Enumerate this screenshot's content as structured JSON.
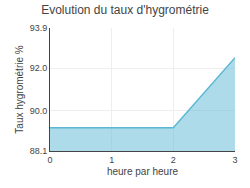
{
  "chart_data": {
    "type": "area",
    "title": "Evolution du taux d'hygrométrie",
    "xlabel": "heure par heure",
    "ylabel": "Taux hygrométrie %",
    "x": [
      0,
      2,
      3
    ],
    "values": [
      89.2,
      89.2,
      92.5
    ],
    "color": "#5bb8d4",
    "xlim": [
      0,
      3
    ],
    "xticks": [
      0,
      1,
      2,
      3
    ],
    "ylim": [
      88.1,
      93.9
    ],
    "yticks": [
      88.1,
      {
        "value": 90.0,
        "label": "90.0"
      },
      {
        "value": 92.0,
        "label": "92.0"
      },
      93.9
    ],
    "grid": true
  }
}
